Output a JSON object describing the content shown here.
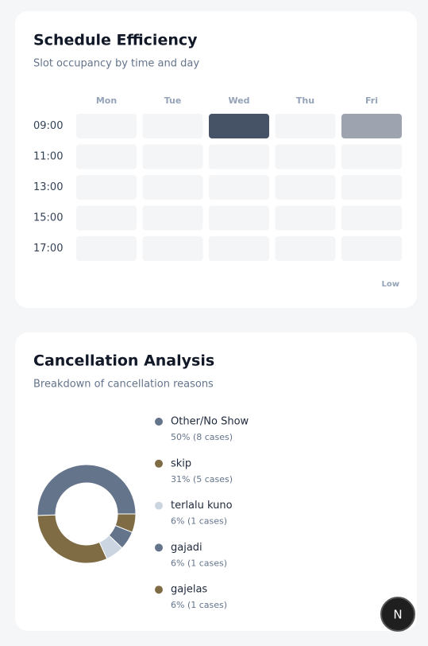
{
  "chart_data": [
    {
      "type": "heatmap",
      "title": "Schedule Efficiency",
      "subtitle": "Slot occupancy by time and day",
      "x": [
        "Mon",
        "Tue",
        "Wed",
        "Thu",
        "Fri"
      ],
      "y": [
        "09:00",
        "11:00",
        "13:00",
        "15:00",
        "17:00"
      ],
      "values": [
        [
          0,
          0,
          1,
          0,
          0.5
        ],
        [
          0,
          0,
          0,
          0,
          0
        ],
        [
          0,
          0,
          0,
          0,
          0
        ],
        [
          0,
          0,
          0,
          0,
          0
        ],
        [
          0,
          0,
          0,
          0,
          0
        ]
      ],
      "color_range": [
        "#f4f5f7",
        "#465366"
      ],
      "legend_label": "Low"
    },
    {
      "type": "pie",
      "title": "Cancellation Analysis",
      "subtitle": "Breakdown of cancellation reasons",
      "categories": [
        "Other/No Show",
        "skip",
        "terlalu kuno",
        "gajadi",
        "gajelas"
      ],
      "values": [
        50,
        31,
        6,
        6,
        6
      ],
      "value_labels": [
        "50% (8 cases)",
        "31% (5 cases)",
        "6% (1 cases)",
        "6% (1 cases)",
        "6% (1 cases)"
      ],
      "colors": [
        "#64748b",
        "#7f6c45",
        "#cbd5e1",
        "#64748b",
        "#7f6c45"
      ],
      "donut": true
    }
  ],
  "floating_button": "N"
}
